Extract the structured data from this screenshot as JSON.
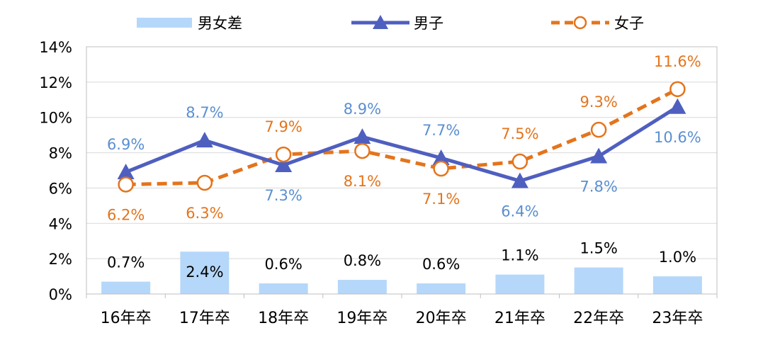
{
  "chart_data": {
    "type": "bar+line",
    "categories": [
      "16年卒",
      "17年卒",
      "18年卒",
      "19年卒",
      "20年卒",
      "21年卒",
      "22年卒",
      "23年卒"
    ],
    "series": [
      {
        "name": "男女差",
        "kind": "bar",
        "values": [
          0.7,
          2.4,
          0.6,
          0.8,
          0.6,
          1.1,
          1.5,
          1.0
        ],
        "labels": [
          "0.7%",
          "2.4%",
          "0.6%",
          "0.8%",
          "0.6%",
          "1.1%",
          "1.5%",
          "1.0%"
        ],
        "color": "#b5d7fa",
        "label_color": "#000000"
      },
      {
        "name": "男子",
        "kind": "line",
        "marker": "triangle",
        "values": [
          6.9,
          8.7,
          7.3,
          8.9,
          7.7,
          6.4,
          7.8,
          10.6
        ],
        "labels": [
          "6.9%",
          "8.7%",
          "7.3%",
          "8.9%",
          "7.7%",
          "6.4%",
          "7.8%",
          "10.6%"
        ],
        "color": "#4f5fbf",
        "label_color": "#5b8fd0"
      },
      {
        "name": "女子",
        "kind": "line",
        "marker": "circle",
        "dashed": true,
        "values": [
          6.2,
          6.3,
          7.9,
          8.1,
          7.1,
          7.5,
          9.3,
          11.6
        ],
        "labels": [
          "6.2%",
          "6.3%",
          "7.9%",
          "8.1%",
          "7.1%",
          "7.5%",
          "9.3%",
          "11.6%"
        ],
        "color": "#e4741c",
        "label_color": "#e4741c"
      }
    ],
    "y_ticks": [
      "0%",
      "2%",
      "4%",
      "6%",
      "8%",
      "10%",
      "12%",
      "14%"
    ],
    "ylim": [
      0,
      14
    ],
    "grid": true,
    "legend_position": "top"
  }
}
